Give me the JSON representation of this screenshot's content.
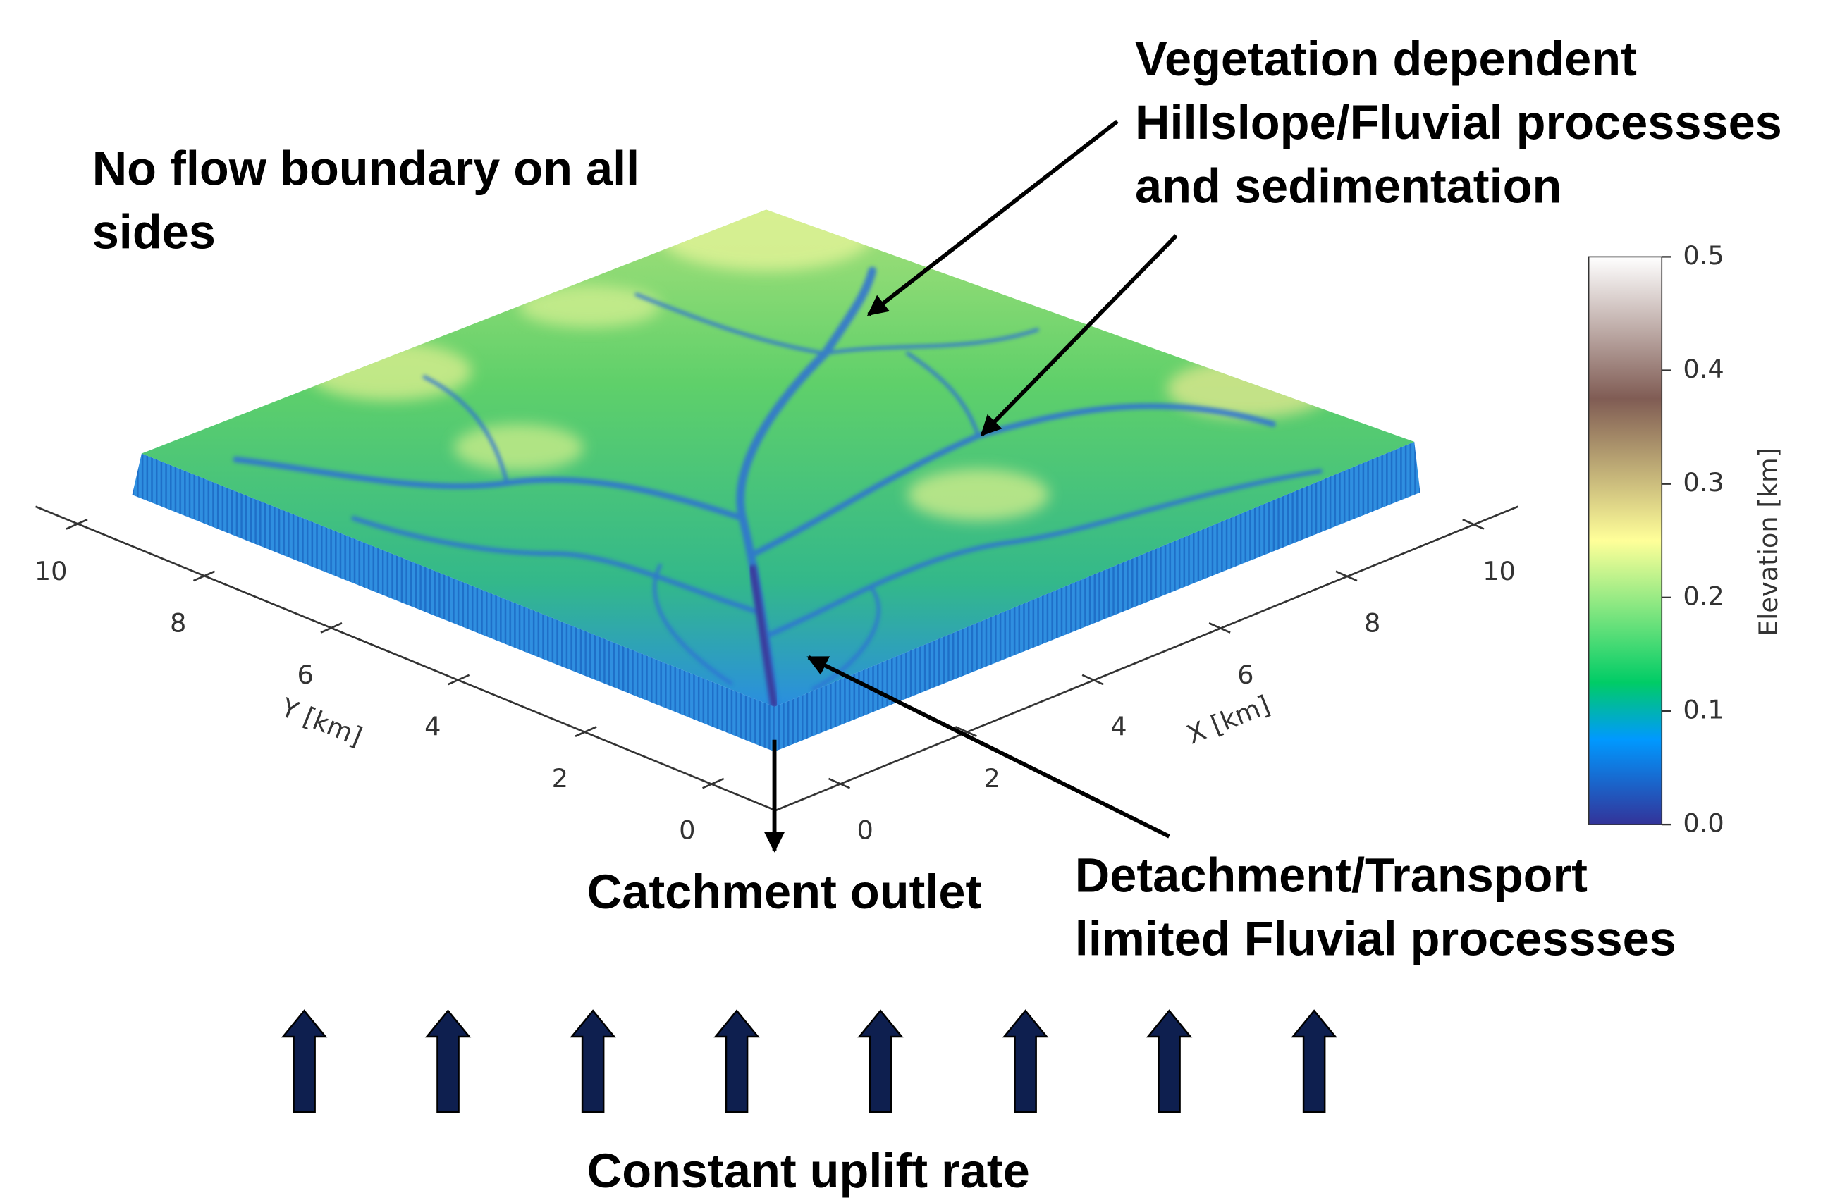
{
  "annotations": {
    "boundary": {
      "lines": [
        "No flow boundary on all",
        "sides"
      ]
    },
    "vegetation": {
      "lines": [
        "Vegetation dependent",
        "Hillslope/Fluvial processses",
        "and sedimentation"
      ]
    },
    "outlet": {
      "lines": [
        "Catchment outlet"
      ]
    },
    "fluvial": {
      "lines": [
        "Detachment/Transport",
        "limited Fluvial processses"
      ]
    },
    "uplift": {
      "lines": [
        "Constant uplift rate"
      ]
    }
  },
  "y_axis": {
    "label": "Y [km]",
    "ticks": [
      0,
      2,
      4,
      6,
      8,
      10
    ]
  },
  "x_axis": {
    "label": "X [km]",
    "ticks": [
      0,
      2,
      4,
      6,
      8,
      10
    ]
  },
  "colorbar": {
    "label": "Elevation [km]",
    "lim": [
      0,
      0.5
    ],
    "ticks": [
      {
        "value": 0,
        "label": "0.0"
      },
      0.1,
      0.2,
      0.3,
      0.4,
      0.5
    ]
  }
}
